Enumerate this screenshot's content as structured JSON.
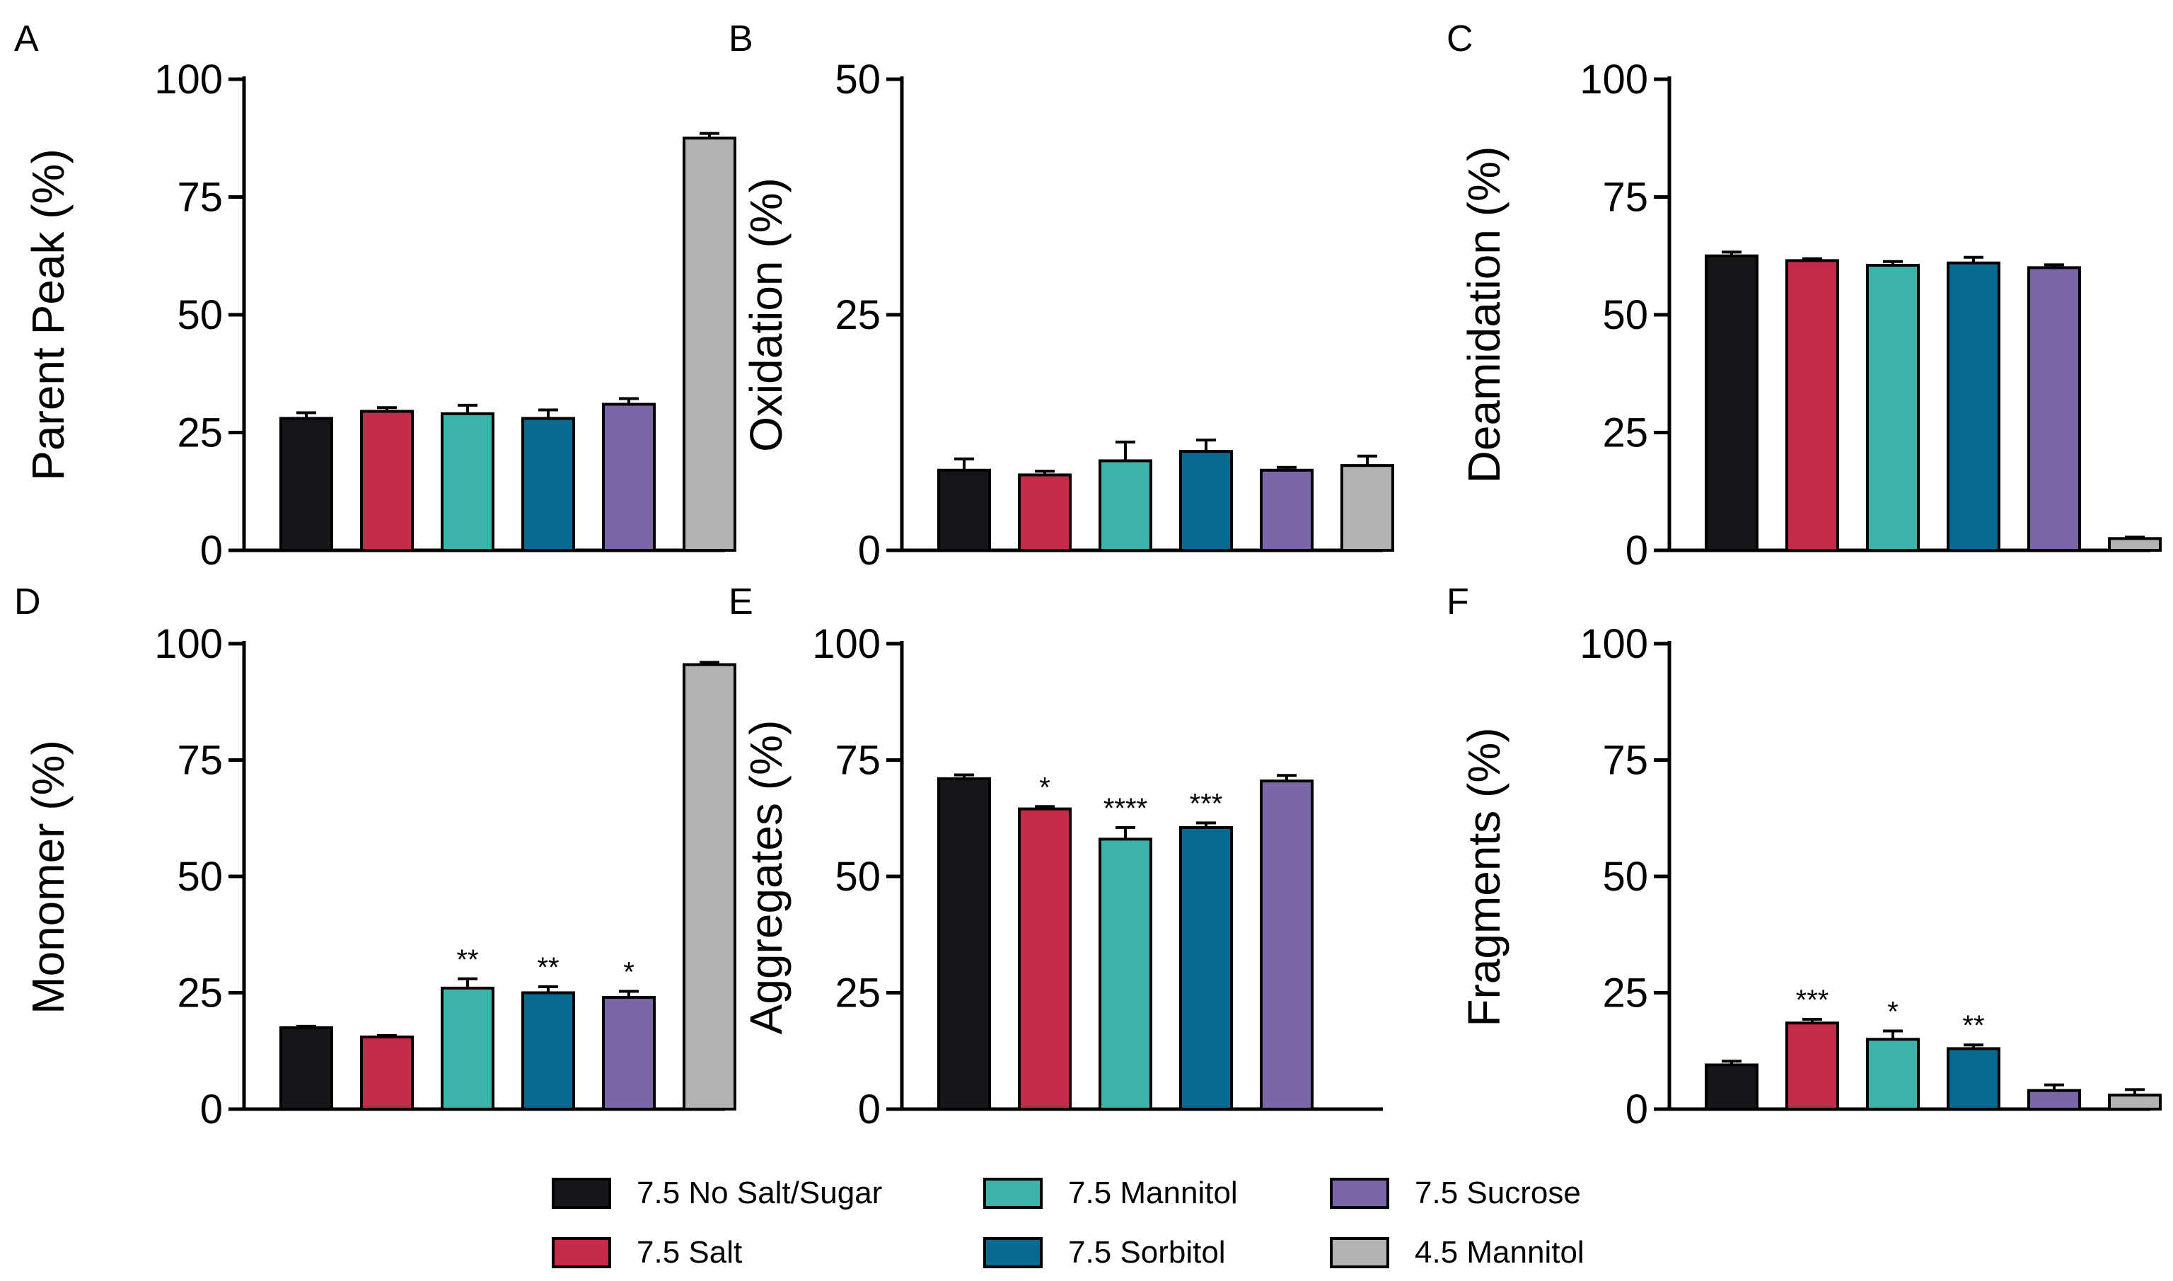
{
  "colors": {
    "7.5 No Salt/Sugar": "#16161a",
    "7.5 Salt": "#c62a49",
    "7.5 Mannitol": "#3cb3a9",
    "7.5 Sorbitol": "#086a8e",
    "7.5 Sucrose": "#7a67a8",
    "4.5 Mannitol": "#b3b3b5"
  },
  "legend": {
    "items": [
      {
        "label": "7.5 No Salt/Sugar",
        "color": "#16161a"
      },
      {
        "label": "7.5 Salt",
        "color": "#c62a49"
      },
      {
        "label": "7.5 Mannitol",
        "color": "#3cb3a9"
      },
      {
        "label": "7.5 Sorbitol",
        "color": "#086a8e"
      },
      {
        "label": "7.5 Sucrose",
        "color": "#7a67a8"
      },
      {
        "label": "4.5 Mannitol",
        "color": "#b3b3b5"
      }
    ]
  },
  "chart_data": [
    {
      "type": "bar",
      "panel": "A",
      "title": "",
      "xlabel": "",
      "ylabel": "Parent Peak (%)",
      "ylim": [
        0,
        100
      ],
      "yticks": [
        "0",
        "25",
        "50",
        "75",
        "100"
      ],
      "categories": [
        "7.5 No Salt/Sugar",
        "7.5 Salt",
        "7.5 Mannitol",
        "7.5 Sorbitol",
        "7.5 Sucrose",
        "4.5 Mannitol"
      ],
      "values": [
        28,
        29.5,
        29,
        28,
        31,
        87.5
      ],
      "errors": [
        1.2,
        0.8,
        1.8,
        1.8,
        1.2,
        1.0
      ],
      "annotations": [
        "",
        "",
        "",
        "",
        "",
        ""
      ]
    },
    {
      "type": "bar",
      "panel": "B",
      "title": "",
      "xlabel": "",
      "ylabel": "Oxidation (%)",
      "ylim": [
        0,
        50
      ],
      "yticks": [
        "0",
        "25",
        "50"
      ],
      "categories": [
        "7.5 No Salt/Sugar",
        "7.5 Salt",
        "7.5 Mannitol",
        "7.5 Sorbitol",
        "7.5 Sucrose",
        "4.5 Mannitol"
      ],
      "values": [
        8.5,
        8,
        9.5,
        10.5,
        8.5,
        9
      ],
      "errors": [
        1.2,
        0.4,
        2.0,
        1.2,
        0.3,
        1.0
      ],
      "annotations": [
        "",
        "",
        "",
        "",
        "",
        ""
      ]
    },
    {
      "type": "bar",
      "panel": "C",
      "title": "",
      "xlabel": "",
      "ylabel": "Deamidation (%)",
      "ylim": [
        0,
        100
      ],
      "yticks": [
        "0",
        "25",
        "50",
        "75",
        "100"
      ],
      "categories": [
        "7.5 No Salt/Sugar",
        "7.5 Salt",
        "7.5 Mannitol",
        "7.5 Sorbitol",
        "7.5 Sucrose",
        "4.5 Mannitol"
      ],
      "values": [
        62.5,
        61.5,
        60.5,
        61,
        60,
        2.5
      ],
      "errors": [
        0.8,
        0.4,
        0.8,
        1.2,
        0.6,
        0.3
      ],
      "annotations": [
        "",
        "",
        "",
        "",
        "",
        ""
      ]
    },
    {
      "type": "bar",
      "panel": "D",
      "title": "",
      "xlabel": "",
      "ylabel": "Monomer (%)",
      "ylim": [
        0,
        100
      ],
      "yticks": [
        "0",
        "25",
        "50",
        "75",
        "100"
      ],
      "categories": [
        "7.5 No Salt/Sugar",
        "7.5 Salt",
        "7.5 Mannitol",
        "7.5 Sorbitol",
        "7.5 Sucrose",
        "4.5 Mannitol"
      ],
      "values": [
        17.5,
        15.5,
        26,
        25,
        24,
        95.5
      ],
      "errors": [
        0.3,
        0.3,
        2.0,
        1.3,
        1.3,
        0.5
      ],
      "annotations": [
        "",
        "",
        "**",
        "**",
        "*",
        ""
      ]
    },
    {
      "type": "bar",
      "panel": "E",
      "title": "",
      "xlabel": "",
      "ylabel": "Aggregates (%)",
      "ylim": [
        0,
        100
      ],
      "yticks": [
        "0",
        "25",
        "50",
        "75",
        "100"
      ],
      "categories": [
        "7.5 No Salt/Sugar",
        "7.5 Salt",
        "7.5 Mannitol",
        "7.5 Sorbitol",
        "7.5 Sucrose"
      ],
      "values": [
        71,
        64.5,
        58,
        60.5,
        70.5
      ],
      "errors": [
        0.8,
        0.5,
        2.5,
        1.0,
        1.2
      ],
      "annotations": [
        "",
        "*",
        "****",
        "***",
        ""
      ]
    },
    {
      "type": "bar",
      "panel": "F",
      "title": "",
      "xlabel": "",
      "ylabel": "Fragments (%)",
      "ylim": [
        0,
        100
      ],
      "yticks": [
        "0",
        "25",
        "50",
        "75",
        "100"
      ],
      "categories": [
        "7.5 No Salt/Sugar",
        "7.5 Salt",
        "7.5 Mannitol",
        "7.5 Sorbitol",
        "7.5 Sucrose",
        "4.5 Mannitol"
      ],
      "values": [
        9.5,
        18.5,
        15,
        13,
        4,
        3
      ],
      "errors": [
        0.8,
        0.8,
        1.8,
        0.8,
        1.2,
        1.2
      ],
      "annotations": [
        "",
        "***",
        "*",
        "**",
        "",
        ""
      ]
    }
  ]
}
